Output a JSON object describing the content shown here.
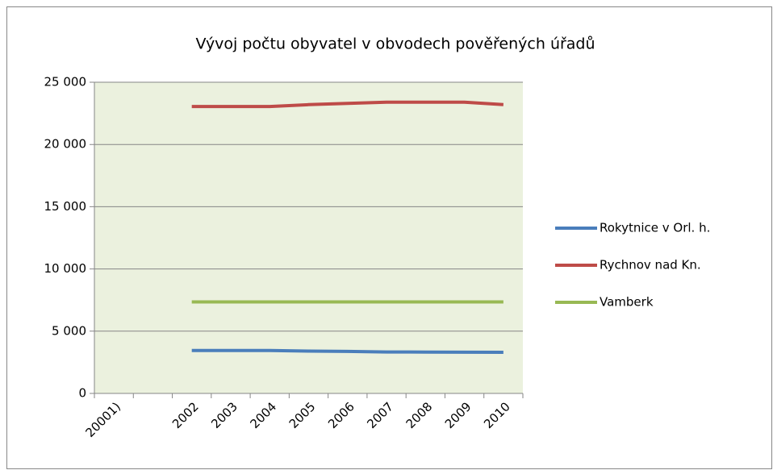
{
  "chart_data": {
    "type": "line",
    "title": "Vývoj počtu obyvatel v obvodech pověřených úřadů",
    "categories": [
      "20001)",
      null,
      "2002",
      "2003",
      "2004",
      "2005",
      "2006",
      "2007",
      "2008",
      "2009",
      "2010"
    ],
    "series": [
      {
        "name": "Rokytnice v Orl. h.",
        "color": "#4a7ebb",
        "values": [
          null,
          null,
          3450,
          3450,
          3450,
          3400,
          3380,
          3330,
          3320,
          3310,
          3300
        ]
      },
      {
        "name": "Rychnov nad Kn.",
        "color": "#be4b48",
        "values": [
          null,
          null,
          23050,
          23050,
          23050,
          23200,
          23300,
          23400,
          23400,
          23400,
          23200
        ]
      },
      {
        "name": "Vamberk",
        "color": "#98b954",
        "values": [
          null,
          null,
          7350,
          7350,
          7350,
          7350,
          7350,
          7350,
          7350,
          7350,
          7350
        ]
      }
    ],
    "ylim": [
      0,
      25000
    ],
    "yticks": [
      0,
      {
        "value": 5000,
        "label": "5 000"
      },
      {
        "value": 10000,
        "label": "10 000"
      },
      {
        "value": 15000,
        "label": "15 000"
      },
      {
        "value": 20000,
        "label": "20 000"
      },
      {
        "value": 25000,
        "label": "25 000"
      }
    ],
    "grid": true,
    "legend": "right"
  }
}
